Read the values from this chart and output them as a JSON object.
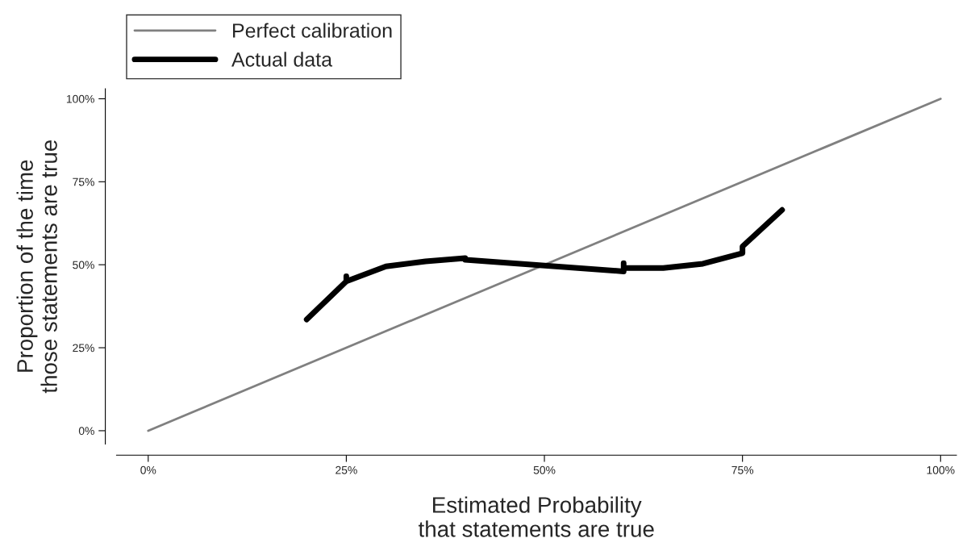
{
  "chart_data": {
    "type": "line",
    "xlabel": "Estimated Probability\nthat statements are true",
    "ylabel": "Proportion of the time\nthose statements are true",
    "series": [
      {
        "name": "Perfect calibration",
        "color": "#808080",
        "x": [
          0,
          100
        ],
        "values": [
          0,
          100
        ]
      },
      {
        "name": "Actual data",
        "color": "#000000",
        "x": [
          20,
          25,
          25,
          25,
          30,
          35,
          40,
          40,
          60,
          60,
          60,
          65,
          70,
          75,
          75,
          80
        ],
        "values": [
          33.5,
          45,
          46.5,
          45,
          49.5,
          51,
          52,
          51.5,
          48,
          50.5,
          49,
          49,
          50.3,
          53.5,
          55.5,
          66.5
        ]
      }
    ],
    "xlim": [
      -4,
      102
    ],
    "ylim": [
      -4,
      103
    ],
    "xticks": [
      {
        "value": 0,
        "label": "0%"
      },
      {
        "value": 25,
        "label": "25%"
      },
      {
        "value": 50,
        "label": "50%"
      },
      {
        "value": 75,
        "label": "75%"
      },
      {
        "value": 100,
        "label": "100%"
      }
    ],
    "yticks": [
      {
        "value": 0,
        "label": "0%"
      },
      {
        "value": 25,
        "label": "25%"
      },
      {
        "value": 50,
        "label": "50%"
      },
      {
        "value": 75,
        "label": "75%"
      },
      {
        "value": 100,
        "label": "100%"
      }
    ],
    "grid": false,
    "legend": "top left",
    "marker": "none",
    "line_style": "solid"
  }
}
